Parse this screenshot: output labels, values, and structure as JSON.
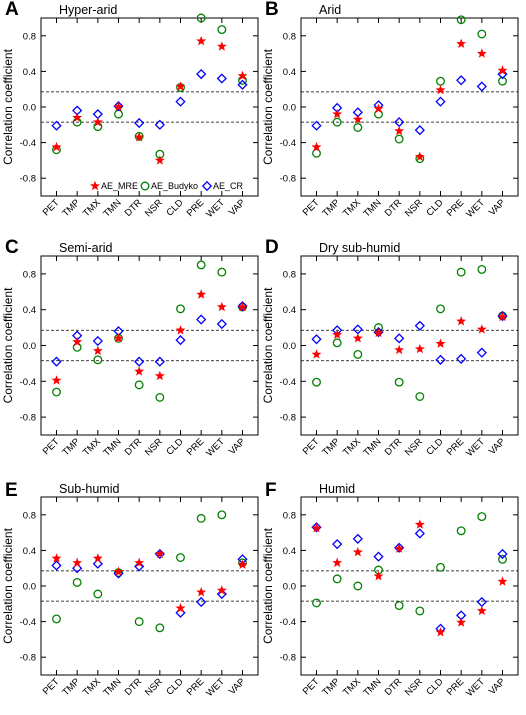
{
  "chart_data": [
    {
      "type": "scatter",
      "panel_letter": "A",
      "title": "Hyper-arid",
      "ylabel": "Correlation coefficient",
      "categories": [
        "PET",
        "TMP",
        "TMX",
        "TMN",
        "DTR",
        "NSR",
        "CLD",
        "PRE",
        "WET",
        "VAP"
      ],
      "ylim": [
        -1.0,
        1.0
      ],
      "yticks": [
        "0.8",
        "0.4",
        "0.0",
        "-0.4",
        "-0.8"
      ],
      "reference_lines": [
        0.17,
        -0.17
      ],
      "series": [
        {
          "name": "AE_MRE",
          "marker": "star",
          "color": "#ff0000",
          "values": [
            -0.45,
            -0.12,
            -0.17,
            0.0,
            -0.34,
            -0.6,
            0.23,
            0.74,
            0.68,
            0.35
          ]
        },
        {
          "name": "AE_Budyko",
          "marker": "circle",
          "color": "#008000",
          "values": [
            -0.48,
            -0.17,
            -0.22,
            -0.08,
            -0.33,
            -0.53,
            0.22,
            1.0,
            0.87,
            0.3
          ]
        },
        {
          "name": "AE_CR",
          "marker": "diamond",
          "color": "#0000ff",
          "values": [
            -0.21,
            -0.04,
            -0.08,
            0.01,
            -0.18,
            -0.2,
            0.06,
            0.37,
            0.32,
            0.25
          ]
        }
      ],
      "legend": {
        "show": true,
        "placement": "bottom",
        "entries": [
          "AE_MRE",
          "AE_Budyko",
          "AE_CR"
        ]
      }
    },
    {
      "type": "scatter",
      "panel_letter": "B",
      "title": "Arid",
      "ylabel": "Correlation coefficient",
      "categories": [
        "PET",
        "TMP",
        "TMX",
        "TMN",
        "DTR",
        "NSR",
        "CLD",
        "PRE",
        "WET",
        "VAP"
      ],
      "ylim": [
        -1.0,
        1.0
      ],
      "yticks": [
        "0.8",
        "0.4",
        "0.0",
        "-0.4",
        "-0.8"
      ],
      "reference_lines": [
        0.17,
        -0.17
      ],
      "series": [
        {
          "name": "AE_MRE",
          "marker": "star",
          "color": "#ff0000",
          "values": [
            -0.45,
            -0.08,
            -0.14,
            -0.02,
            -0.27,
            -0.56,
            0.19,
            0.71,
            0.6,
            0.41
          ]
        },
        {
          "name": "AE_Budyko",
          "marker": "circle",
          "color": "#008000",
          "values": [
            -0.52,
            -0.17,
            -0.23,
            -0.08,
            -0.36,
            -0.58,
            0.29,
            0.98,
            0.82,
            0.29
          ]
        },
        {
          "name": "AE_CR",
          "marker": "diamond",
          "color": "#0000ff",
          "values": [
            -0.21,
            -0.01,
            -0.06,
            0.02,
            -0.17,
            -0.26,
            0.06,
            0.3,
            0.23,
            0.37
          ]
        }
      ],
      "legend": {
        "show": false
      }
    },
    {
      "type": "scatter",
      "panel_letter": "C",
      "title": "Semi-arid",
      "ylabel": "Correlation coefficient",
      "categories": [
        "PET",
        "TMP",
        "TMX",
        "TMN",
        "DTR",
        "NSR",
        "CLD",
        "PRE",
        "WET",
        "VAP"
      ],
      "ylim": [
        -1.0,
        1.0
      ],
      "yticks": [
        "0.8",
        "0.4",
        "0.0",
        "-0.4",
        "-0.8"
      ],
      "reference_lines": [
        0.17,
        -0.17
      ],
      "series": [
        {
          "name": "AE_MRE",
          "marker": "star",
          "color": "#ff0000",
          "values": [
            -0.39,
            0.04,
            -0.06,
            0.08,
            -0.29,
            -0.34,
            0.17,
            0.57,
            0.43,
            0.43
          ]
        },
        {
          "name": "AE_Budyko",
          "marker": "circle",
          "color": "#008000",
          "values": [
            -0.52,
            -0.02,
            -0.16,
            0.08,
            -0.44,
            -0.58,
            0.41,
            0.9,
            0.82,
            0.43
          ]
        },
        {
          "name": "AE_CR",
          "marker": "diamond",
          "color": "#0000ff",
          "values": [
            -0.18,
            0.11,
            0.05,
            0.16,
            -0.18,
            -0.18,
            0.06,
            0.29,
            0.24,
            0.44
          ]
        }
      ],
      "legend": {
        "show": false
      }
    },
    {
      "type": "scatter",
      "panel_letter": "D",
      "title": "Dry sub-humid",
      "ylabel": "Correlation coefficient",
      "categories": [
        "PET",
        "TMP",
        "TMX",
        "TMN",
        "DTR",
        "NSR",
        "CLD",
        "PRE",
        "WET",
        "VAP"
      ],
      "ylim": [
        -1.0,
        1.0
      ],
      "yticks": [
        "0.8",
        "0.4",
        "0.0",
        "-0.4",
        "-0.8"
      ],
      "reference_lines": [
        0.17,
        -0.17
      ],
      "series": [
        {
          "name": "AE_MRE",
          "marker": "star",
          "color": "#ff0000",
          "values": [
            -0.1,
            0.12,
            0.08,
            0.14,
            -0.05,
            -0.04,
            0.02,
            0.27,
            0.18,
            0.32
          ]
        },
        {
          "name": "AE_Budyko",
          "marker": "circle",
          "color": "#008000",
          "values": [
            -0.41,
            0.03,
            -0.1,
            0.2,
            -0.41,
            -0.57,
            0.41,
            0.82,
            0.85,
            0.33
          ]
        },
        {
          "name": "AE_CR",
          "marker": "diamond",
          "color": "#0000ff",
          "values": [
            0.07,
            0.17,
            0.18,
            0.15,
            0.08,
            0.22,
            -0.16,
            -0.15,
            -0.08,
            0.33
          ]
        }
      ],
      "legend": {
        "show": false
      }
    },
    {
      "type": "scatter",
      "panel_letter": "E",
      "title": "Sub-humid",
      "ylabel": "Correlation coefficient",
      "categories": [
        "PET",
        "TMP",
        "TMX",
        "TMN",
        "DTR",
        "NSR",
        "CLD",
        "PRE",
        "WET",
        "VAP"
      ],
      "ylim": [
        -1.0,
        1.0
      ],
      "yticks": [
        "0.8",
        "0.4",
        "0.0",
        "-0.4",
        "-0.8"
      ],
      "reference_lines": [
        0.17,
        -0.17
      ],
      "series": [
        {
          "name": "AE_MRE",
          "marker": "star",
          "color": "#ff0000",
          "values": [
            0.31,
            0.26,
            0.31,
            0.16,
            0.26,
            0.36,
            -0.25,
            -0.07,
            -0.05,
            0.24
          ]
        },
        {
          "name": "AE_Budyko",
          "marker": "circle",
          "color": "#008000",
          "values": [
            -0.37,
            0.04,
            -0.09,
            0.15,
            -0.4,
            -0.47,
            0.32,
            0.76,
            0.8,
            0.26
          ]
        },
        {
          "name": "AE_CR",
          "marker": "diamond",
          "color": "#0000ff",
          "values": [
            0.23,
            0.2,
            0.25,
            0.14,
            0.22,
            0.36,
            -0.3,
            -0.18,
            -0.09,
            0.3
          ]
        }
      ],
      "legend": {
        "show": false
      }
    },
    {
      "type": "scatter",
      "panel_letter": "F",
      "title": "Humid",
      "ylabel": "Correlation coefficient",
      "categories": [
        "PET",
        "TMP",
        "TMX",
        "TMN",
        "DTR",
        "NSR",
        "CLD",
        "PRE",
        "WET",
        "VAP"
      ],
      "ylim": [
        -1.0,
        1.0
      ],
      "yticks": [
        "0.8",
        "0.4",
        "0.0",
        "-0.4",
        "-0.8"
      ],
      "reference_lines": [
        0.17,
        -0.17
      ],
      "series": [
        {
          "name": "AE_MRE",
          "marker": "star",
          "color": "#ff0000",
          "values": [
            0.65,
            0.26,
            0.38,
            0.11,
            0.42,
            0.69,
            -0.52,
            -0.41,
            -0.28,
            0.05
          ]
        },
        {
          "name": "AE_Budyko",
          "marker": "circle",
          "color": "#008000",
          "values": [
            -0.19,
            0.08,
            0.0,
            0.18,
            -0.22,
            -0.28,
            0.21,
            0.62,
            0.78,
            0.3
          ]
        },
        {
          "name": "AE_CR",
          "marker": "diamond",
          "color": "#0000ff",
          "values": [
            0.66,
            0.47,
            0.53,
            0.33,
            0.43,
            0.59,
            -0.48,
            -0.33,
            -0.18,
            0.36
          ]
        }
      ],
      "legend": {
        "show": false
      }
    }
  ]
}
